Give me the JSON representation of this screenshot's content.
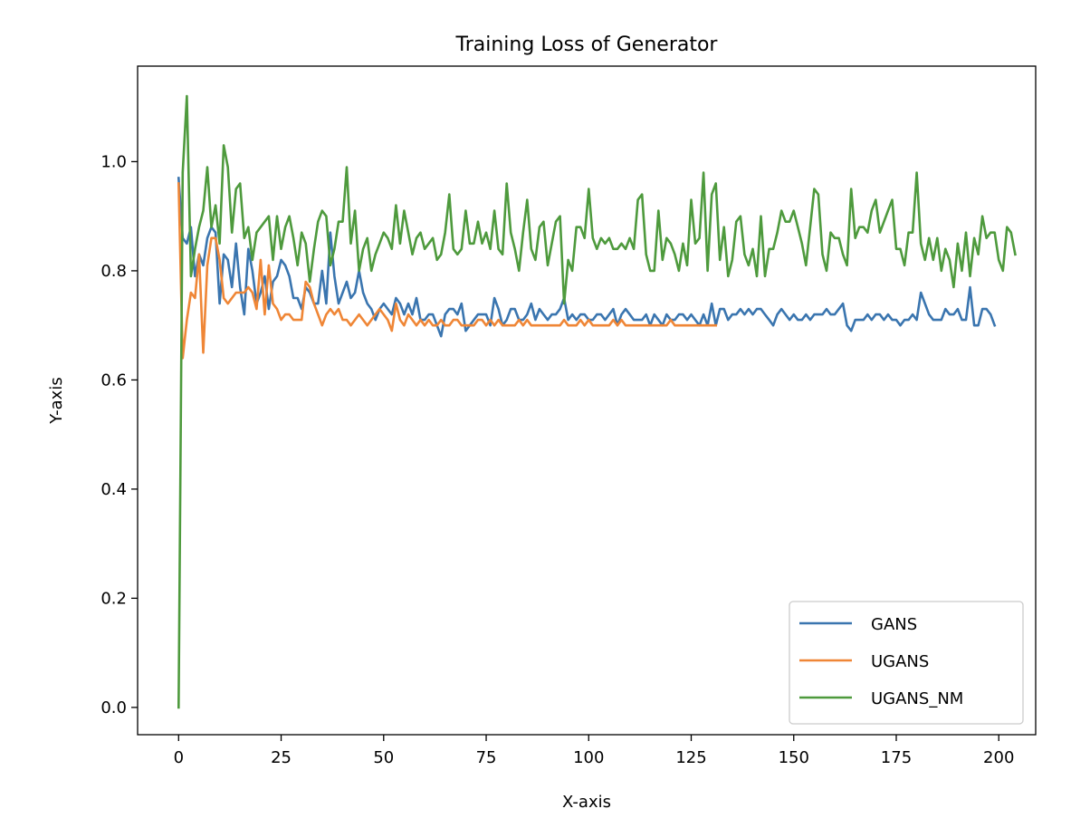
{
  "chart_data": {
    "type": "line",
    "title": "Training Loss of Generator",
    "xlabel": "X-axis",
    "ylabel": "Y-axis",
    "xlim": [
      -10,
      209
    ],
    "ylim": [
      -0.05,
      1.175
    ],
    "x_ticks": [
      0,
      25,
      50,
      75,
      100,
      125,
      150,
      175,
      200
    ],
    "y_ticks": [
      0.0,
      0.2,
      0.4,
      0.6,
      0.8,
      1.0
    ],
    "x_tick_labels": [
      "0",
      "25",
      "50",
      "75",
      "100",
      "125",
      "150",
      "175",
      "200"
    ],
    "y_tick_labels": [
      "0.0",
      "0.2",
      "0.4",
      "0.6",
      "0.8",
      "1.0"
    ],
    "grid": false,
    "legend_position": "lower-right",
    "series": [
      {
        "name": "GANS",
        "color": "#3a75af",
        "values": [
          0.97,
          0.86,
          0.85,
          0.88,
          0.79,
          0.83,
          0.81,
          0.86,
          0.88,
          0.87,
          0.74,
          0.83,
          0.82,
          0.77,
          0.85,
          0.77,
          0.72,
          0.84,
          0.8,
          0.74,
          0.76,
          0.79,
          0.73,
          0.78,
          0.79,
          0.82,
          0.81,
          0.79,
          0.75,
          0.75,
          0.73,
          0.77,
          0.76,
          0.74,
          0.74,
          0.8,
          0.74,
          0.87,
          0.79,
          0.74,
          0.76,
          0.78,
          0.75,
          0.76,
          0.8,
          0.76,
          0.74,
          0.73,
          0.71,
          0.73,
          0.74,
          0.73,
          0.72,
          0.75,
          0.74,
          0.72,
          0.74,
          0.72,
          0.75,
          0.71,
          0.71,
          0.72,
          0.72,
          0.7,
          0.68,
          0.72,
          0.73,
          0.73,
          0.72,
          0.74,
          0.69,
          0.7,
          0.71,
          0.72,
          0.72,
          0.72,
          0.7,
          0.75,
          0.73,
          0.7,
          0.71,
          0.73,
          0.73,
          0.71,
          0.71,
          0.72,
          0.74,
          0.71,
          0.73,
          0.72,
          0.71,
          0.72,
          0.72,
          0.73,
          0.75,
          0.71,
          0.72,
          0.71,
          0.72,
          0.72,
          0.71,
          0.71,
          0.72,
          0.72,
          0.71,
          0.72,
          0.73,
          0.7,
          0.72,
          0.73,
          0.72,
          0.71,
          0.71,
          0.71,
          0.72,
          0.7,
          0.72,
          0.71,
          0.7,
          0.72,
          0.71,
          0.71,
          0.72,
          0.72,
          0.71,
          0.72,
          0.71,
          0.7,
          0.72,
          0.7,
          0.74,
          0.7,
          0.73,
          0.73,
          0.71,
          0.72,
          0.72,
          0.73,
          0.72,
          0.73,
          0.72,
          0.73,
          0.73,
          0.72,
          0.71,
          0.7,
          0.72,
          0.73,
          0.72,
          0.71,
          0.72,
          0.71,
          0.71,
          0.72,
          0.71,
          0.72,
          0.72,
          0.72,
          0.73,
          0.72,
          0.72,
          0.73,
          0.74,
          0.7,
          0.69,
          0.71,
          0.71,
          0.71,
          0.72,
          0.71,
          0.72,
          0.72,
          0.71,
          0.72,
          0.71,
          0.71,
          0.7,
          0.71,
          0.71,
          0.72,
          0.71,
          0.76,
          0.74,
          0.72,
          0.71,
          0.71,
          0.71,
          0.73,
          0.72,
          0.72,
          0.73,
          0.71,
          0.71,
          0.77,
          0.7,
          0.7,
          0.73,
          0.73,
          0.72,
          0.7
        ]
      },
      {
        "name": "UGANS",
        "color": "#ef8636",
        "values": [
          0.96,
          0.64,
          0.71,
          0.76,
          0.75,
          0.83,
          0.65,
          0.81,
          0.86,
          0.86,
          0.82,
          0.75,
          0.74,
          0.75,
          0.76,
          0.76,
          0.76,
          0.77,
          0.76,
          0.73,
          0.82,
          0.72,
          0.81,
          0.74,
          0.73,
          0.71,
          0.72,
          0.72,
          0.71,
          0.71,
          0.71,
          0.78,
          0.77,
          0.74,
          0.72,
          0.7,
          0.72,
          0.73,
          0.72,
          0.73,
          0.71,
          0.71,
          0.7,
          0.71,
          0.72,
          0.71,
          0.7,
          0.71,
          0.72,
          0.73,
          0.72,
          0.71,
          0.69,
          0.74,
          0.71,
          0.7,
          0.72,
          0.71,
          0.7,
          0.71,
          0.7,
          0.71,
          0.7,
          0.7,
          0.71,
          0.7,
          0.7,
          0.71,
          0.71,
          0.7,
          0.7,
          0.7,
          0.7,
          0.71,
          0.71,
          0.7,
          0.71,
          0.7,
          0.71,
          0.7,
          0.7,
          0.7,
          0.7,
          0.71,
          0.7,
          0.71,
          0.7,
          0.7,
          0.7,
          0.7,
          0.7,
          0.7,
          0.7,
          0.7,
          0.71,
          0.7,
          0.7,
          0.7,
          0.71,
          0.7,
          0.71,
          0.7,
          0.7,
          0.7,
          0.7,
          0.7,
          0.71,
          0.7,
          0.71,
          0.7,
          0.7,
          0.7,
          0.7,
          0.7,
          0.7,
          0.7,
          0.7,
          0.7,
          0.7,
          0.7,
          0.71,
          0.7,
          0.7,
          0.7,
          0.7,
          0.7,
          0.7,
          0.7,
          0.7,
          0.7,
          0.7,
          0.7
        ]
      },
      {
        "name": "UGANS_NM",
        "color": "#4e9a3d",
        "values": [
          0.0,
          0.98,
          1.12,
          0.79,
          0.84,
          0.88,
          0.91,
          0.99,
          0.88,
          0.92,
          0.85,
          1.03,
          0.99,
          0.87,
          0.95,
          0.96,
          0.86,
          0.88,
          0.82,
          0.87,
          0.88,
          0.89,
          0.9,
          0.82,
          0.9,
          0.84,
          0.88,
          0.9,
          0.86,
          0.81,
          0.87,
          0.85,
          0.78,
          0.84,
          0.89,
          0.91,
          0.9,
          0.81,
          0.84,
          0.89,
          0.89,
          0.99,
          0.85,
          0.91,
          0.8,
          0.84,
          0.86,
          0.8,
          0.83,
          0.85,
          0.87,
          0.86,
          0.84,
          0.92,
          0.85,
          0.91,
          0.87,
          0.83,
          0.86,
          0.87,
          0.84,
          0.85,
          0.86,
          0.82,
          0.83,
          0.87,
          0.94,
          0.84,
          0.83,
          0.84,
          0.91,
          0.85,
          0.85,
          0.89,
          0.85,
          0.87,
          0.84,
          0.91,
          0.84,
          0.83,
          0.96,
          0.87,
          0.84,
          0.8,
          0.87,
          0.93,
          0.84,
          0.82,
          0.88,
          0.89,
          0.81,
          0.85,
          0.89,
          0.9,
          0.74,
          0.82,
          0.8,
          0.88,
          0.88,
          0.86,
          0.95,
          0.86,
          0.84,
          0.86,
          0.85,
          0.86,
          0.84,
          0.84,
          0.85,
          0.84,
          0.86,
          0.84,
          0.93,
          0.94,
          0.83,
          0.8,
          0.8,
          0.91,
          0.82,
          0.86,
          0.85,
          0.83,
          0.8,
          0.85,
          0.81,
          0.93,
          0.85,
          0.86,
          0.98,
          0.8,
          0.94,
          0.96,
          0.82,
          0.88,
          0.79,
          0.82,
          0.89,
          0.9,
          0.83,
          0.81,
          0.84,
          0.79,
          0.9,
          0.79,
          0.84,
          0.84,
          0.87,
          0.91,
          0.89,
          0.89,
          0.91,
          0.88,
          0.85,
          0.81,
          0.88,
          0.95,
          0.94,
          0.83,
          0.8,
          0.87,
          0.86,
          0.86,
          0.83,
          0.81,
          0.95,
          0.86,
          0.88,
          0.88,
          0.87,
          0.91,
          0.93,
          0.87,
          0.89,
          0.91,
          0.93,
          0.84,
          0.84,
          0.81,
          0.87,
          0.87,
          0.98,
          0.85,
          0.82,
          0.86,
          0.82,
          0.86,
          0.8,
          0.84,
          0.82,
          0.77,
          0.85,
          0.8,
          0.87,
          0.79,
          0.86,
          0.83,
          0.9,
          0.86,
          0.87,
          0.87,
          0.82,
          0.8,
          0.88,
          0.87,
          0.83
        ]
      }
    ]
  }
}
